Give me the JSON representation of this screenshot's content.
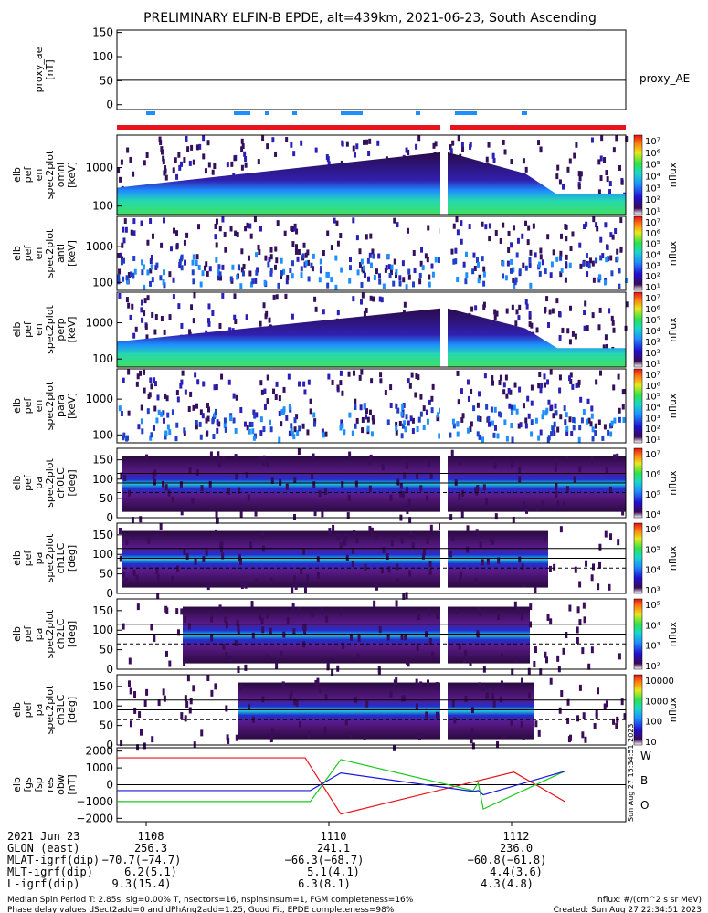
{
  "title": "PRELIMINARY ELFIN-B EPDE, alt=439km, 2021-06-23, South Ascending",
  "colors": {
    "sector_bar": "#e8141b",
    "ae_marks": "#1e8fff",
    "trace_w": "#e8141b",
    "trace_b": "#1fc81f",
    "trace_o": "#1a1ad8",
    "energy_upper": "#34105a",
    "energy_mid": "#2230c8",
    "energy_core": "#27d6a6",
    "energy_low": "#45e35a"
  },
  "panels": [
    {
      "ylabel": [
        "proxy_ae",
        "[nT]"
      ],
      "ticks": [
        "150",
        "100",
        "50",
        "0"
      ],
      "right_label": "proxy_AE"
    },
    {
      "ylabel": [
        "elb",
        "pef",
        "en",
        "spec2plot",
        "omni",
        "[keV]"
      ],
      "ticks": [
        "1000",
        "100"
      ],
      "cbar_ticks": [
        "10⁷",
        "10⁶",
        "10⁵",
        "10⁴",
        "10³",
        "10²",
        "10¹"
      ],
      "cbar_label": "nflux"
    },
    {
      "ylabel": [
        "elb",
        "pef",
        "en",
        "spec2plot",
        "anti",
        "[keV]"
      ],
      "ticks": [
        "1000",
        "100"
      ],
      "cbar_ticks": [
        "10⁷",
        "10⁶",
        "10⁵",
        "10⁴",
        "10³",
        "10²",
        "10¹"
      ],
      "cbar_label": "nflux"
    },
    {
      "ylabel": [
        "elb",
        "pef",
        "en",
        "spec2plot",
        "perp",
        "[keV]"
      ],
      "ticks": [
        "1000",
        "100"
      ],
      "cbar_ticks": [
        "10⁷",
        "10⁶",
        "10⁵",
        "10⁴",
        "10³",
        "10²",
        "10¹"
      ],
      "cbar_label": "nflux"
    },
    {
      "ylabel": [
        "elb",
        "pef",
        "en",
        "spec2plot",
        "para",
        "[keV]"
      ],
      "ticks": [
        "1000",
        "100"
      ],
      "cbar_ticks": [
        "10⁷",
        "10⁶",
        "10⁵",
        "10⁴",
        "10³",
        "10²",
        "10¹"
      ],
      "cbar_label": "nflux"
    },
    {
      "ylabel": [
        "elb",
        "pef",
        "pa",
        "spec2plot",
        "ch0LC",
        "[deg]"
      ],
      "ticks": [
        "150",
        "100",
        "50",
        "0"
      ],
      "cbar_ticks": [
        "10⁷",
        "10⁶",
        "10⁵",
        "10⁴"
      ],
      "cbar_label": "nflux"
    },
    {
      "ylabel": [
        "elb",
        "pef",
        "pa",
        "spec2plot",
        "ch1LC",
        "[deg]"
      ],
      "ticks": [
        "150",
        "100",
        "50",
        "0"
      ],
      "cbar_ticks": [
        "10⁶",
        "10⁵",
        "10⁴",
        "10³"
      ],
      "cbar_label": "nflux"
    },
    {
      "ylabel": [
        "elb",
        "pef",
        "pa",
        "spec2plot",
        "ch2LC",
        "[deg]"
      ],
      "ticks": [
        "150",
        "100",
        "50",
        "0"
      ],
      "cbar_ticks": [
        "10⁵",
        "10⁴",
        "10³",
        "10²"
      ],
      "cbar_label": "nflux"
    },
    {
      "ylabel": [
        "elb",
        "pef",
        "pa",
        "spec2plot",
        "ch3LC",
        "[deg]"
      ],
      "ticks": [
        "150",
        "100",
        "50",
        "0"
      ],
      "cbar_ticks": [
        "10000",
        "1000",
        "100",
        "10"
      ],
      "cbar_label": "nflux"
    },
    {
      "ylabel": [
        "elb",
        "fgs",
        "fsp",
        "res",
        "obw",
        "[nT]"
      ],
      "ticks": [
        "2000",
        "1000",
        "0",
        "−1000",
        "−2000"
      ],
      "legend": [
        "W",
        "B",
        "O"
      ],
      "stamp": "Sun Aug 27 15:34:51 2023"
    }
  ],
  "chart_data": [
    {
      "type": "line",
      "title": "proxy_AE",
      "ylabel": "proxy_ae [nT]",
      "ylim": [
        -10,
        155
      ],
      "x": [
        0,
        1
      ],
      "series": [
        {
          "name": "proxy_AE",
          "values": [
            51,
            51
          ]
        }
      ]
    },
    {
      "type": "heatmap",
      "ylabel": "elb pef en spec2plot [keV]",
      "y_axis": "log",
      "ylim": [
        60,
        7000
      ],
      "color_scale": "nflux, 10¹ to 10⁷, log"
    },
    {
      "type": "heatmap",
      "ylabel": "elb pef pa spec2plot [deg]",
      "ylim": [
        0,
        180
      ],
      "color_scale": "nflux, log"
    },
    {
      "type": "line",
      "ylabel": "elb fgs fsp res obw [nT]",
      "ylim": [
        -2200,
        2200
      ],
      "x_ticks": [
        "1108",
        "1110",
        "1112"
      ],
      "series": [
        {
          "name": "W",
          "x": [
            0.0,
            0.37,
            0.44,
            0.78,
            0.88
          ],
          "values": [
            1600,
            1600,
            -1750,
            750,
            -1000
          ]
        },
        {
          "name": "B",
          "x": [
            0.0,
            0.38,
            0.44,
            0.7,
            0.71,
            0.72,
            0.88
          ],
          "values": [
            -1000,
            -1000,
            1500,
            -350,
            100,
            -1450,
            800
          ]
        },
        {
          "name": "O",
          "x": [
            0.0,
            0.38,
            0.44,
            0.7,
            0.71,
            0.72,
            0.88
          ],
          "values": [
            -350,
            -350,
            700,
            -400,
            -350,
            -600,
            800
          ]
        }
      ]
    }
  ],
  "footer": {
    "row_labels": [
      "2021 Jun 23",
      "GLON (east)",
      "MLAT-igrf(dip)",
      "MLT-igrf(dip)",
      "L-igrf(dip)"
    ],
    "columns": [
      {
        "time": "1108",
        "glon": "256.3",
        "mlat": "−70.7(−74.7)",
        "mlt": "6.2(5.1)",
        "l": "9.3(15.4)"
      },
      {
        "time": "1110",
        "glon": "241.1",
        "mlat": "−66.3(−68.7)",
        "mlt": "5.1(4.1)",
        "l": "6.3(8.1)"
      },
      {
        "time": "1112",
        "glon": "236.0",
        "mlat": "−60.8(−61.8)",
        "mlt": "4.4(3.6)",
        "l": "4.3(4.8)"
      }
    ],
    "note1": "Median Spin Period T: 2.85s, sig=0.00% T, nsectors=16, nspinsinsum=1, FGM completeness=16%",
    "note2": "Phase delay values dSect2add=0 and dPhAng2add=1.25, Good Fit, EPDE completeness=98%",
    "units": "nflux: #/(cm^2 s sr MeV)",
    "created": "Created: Sun Aug 27 22:34:51 2023"
  }
}
